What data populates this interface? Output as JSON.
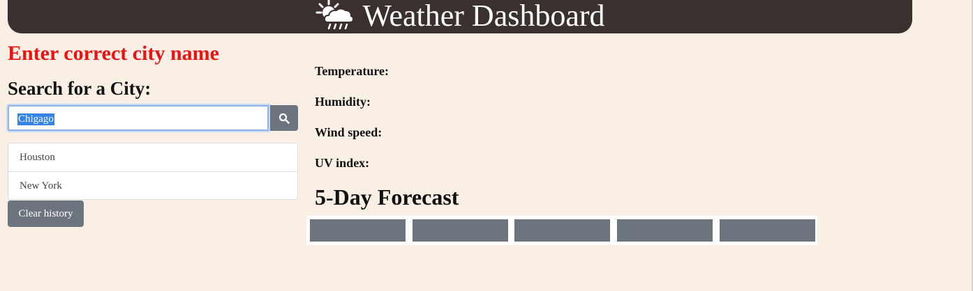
{
  "header": {
    "title": "Weather Dashboard",
    "icon": "sun-behind-rain-cloud-icon"
  },
  "error_message": "Enter correct city name",
  "search": {
    "heading": "Search for a City:",
    "value": "Chigago",
    "button_icon": "search-icon"
  },
  "history": {
    "items": [
      "Houston",
      "New York"
    ],
    "clear_label": "Clear history"
  },
  "current": {
    "temperature_label": "Temperature:",
    "humidity_label": "Humidity:",
    "wind_label": "Wind speed:",
    "uv_label": "UV index:"
  },
  "forecast": {
    "heading": "5-Day Forecast",
    "card_count": 5
  },
  "colors": {
    "background": "#faefe5",
    "header": "#3a3030",
    "error": "#ee1111",
    "button": "#6c757d",
    "selection": "#3584e4"
  }
}
